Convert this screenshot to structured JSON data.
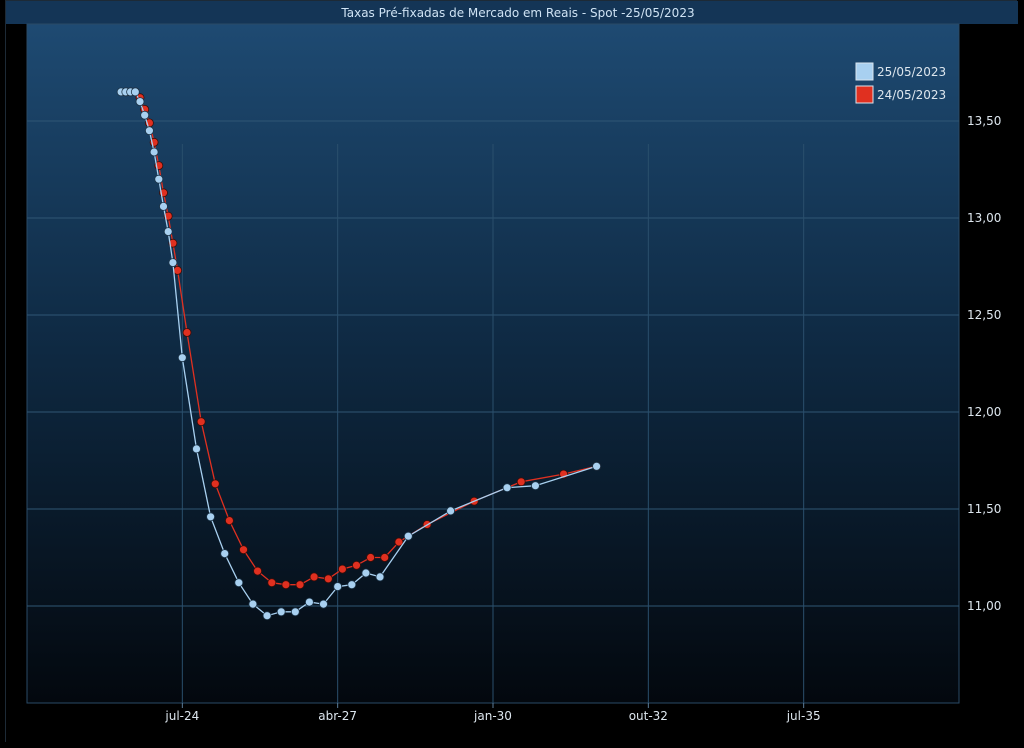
{
  "chart_data": {
    "type": "line",
    "title": "Taxas Pré-fixadas de Mercado em Reais - Spot -25/05/2023",
    "xlabel": "",
    "ylabel": "",
    "x_ticks": [
      "jul-24",
      "abr-27",
      "jan-30",
      "out-32",
      "jul-35"
    ],
    "x_tick_months": [
      14,
      47,
      80,
      113,
      146
    ],
    "xlim_months": [
      -19,
      179
    ],
    "y_ticks": [
      "11,00",
      "11,50",
      "12,00",
      "12,50",
      "13,00",
      "13,50"
    ],
    "y_tick_values": [
      11.0,
      11.5,
      12.0,
      12.5,
      13.0,
      13.5
    ],
    "ylim": [
      10.5,
      14.0
    ],
    "grid": true,
    "legend_position": "top-right",
    "series": [
      {
        "name": "25/05/2023",
        "color": "#a8d0f0",
        "x_months": [
          1,
          2,
          3,
          4,
          5,
          6,
          7,
          8,
          9,
          10,
          11,
          12,
          14,
          17,
          20,
          23,
          26,
          29,
          32,
          35,
          38,
          41,
          44,
          47,
          50,
          53,
          56,
          62,
          71,
          83,
          89,
          102
        ],
        "values": [
          13.65,
          13.65,
          13.65,
          13.65,
          13.6,
          13.53,
          13.45,
          13.34,
          13.2,
          13.06,
          12.93,
          12.77,
          12.28,
          11.81,
          11.46,
          11.27,
          11.12,
          11.01,
          10.95,
          10.97,
          10.97,
          11.02,
          11.01,
          11.1,
          11.11,
          11.17,
          11.15,
          11.36,
          11.49,
          11.61,
          11.62,
          11.72
        ]
      },
      {
        "name": "24/05/2023",
        "color": "#e03020",
        "x_months": [
          2,
          3,
          4,
          5,
          6,
          7,
          8,
          9,
          10,
          11,
          12,
          13,
          15,
          18,
          21,
          24,
          27,
          30,
          33,
          36,
          39,
          42,
          45,
          48,
          51,
          54,
          57,
          60,
          66,
          76,
          86,
          95,
          102
        ],
        "values": [
          13.65,
          13.65,
          13.65,
          13.62,
          13.56,
          13.49,
          13.39,
          13.27,
          13.13,
          13.01,
          12.87,
          12.73,
          12.41,
          11.95,
          11.63,
          11.44,
          11.29,
          11.18,
          11.12,
          11.11,
          11.11,
          11.15,
          11.14,
          11.19,
          11.21,
          11.25,
          11.25,
          11.33,
          11.42,
          11.54,
          11.64,
          11.68,
          11.72
        ]
      }
    ]
  }
}
